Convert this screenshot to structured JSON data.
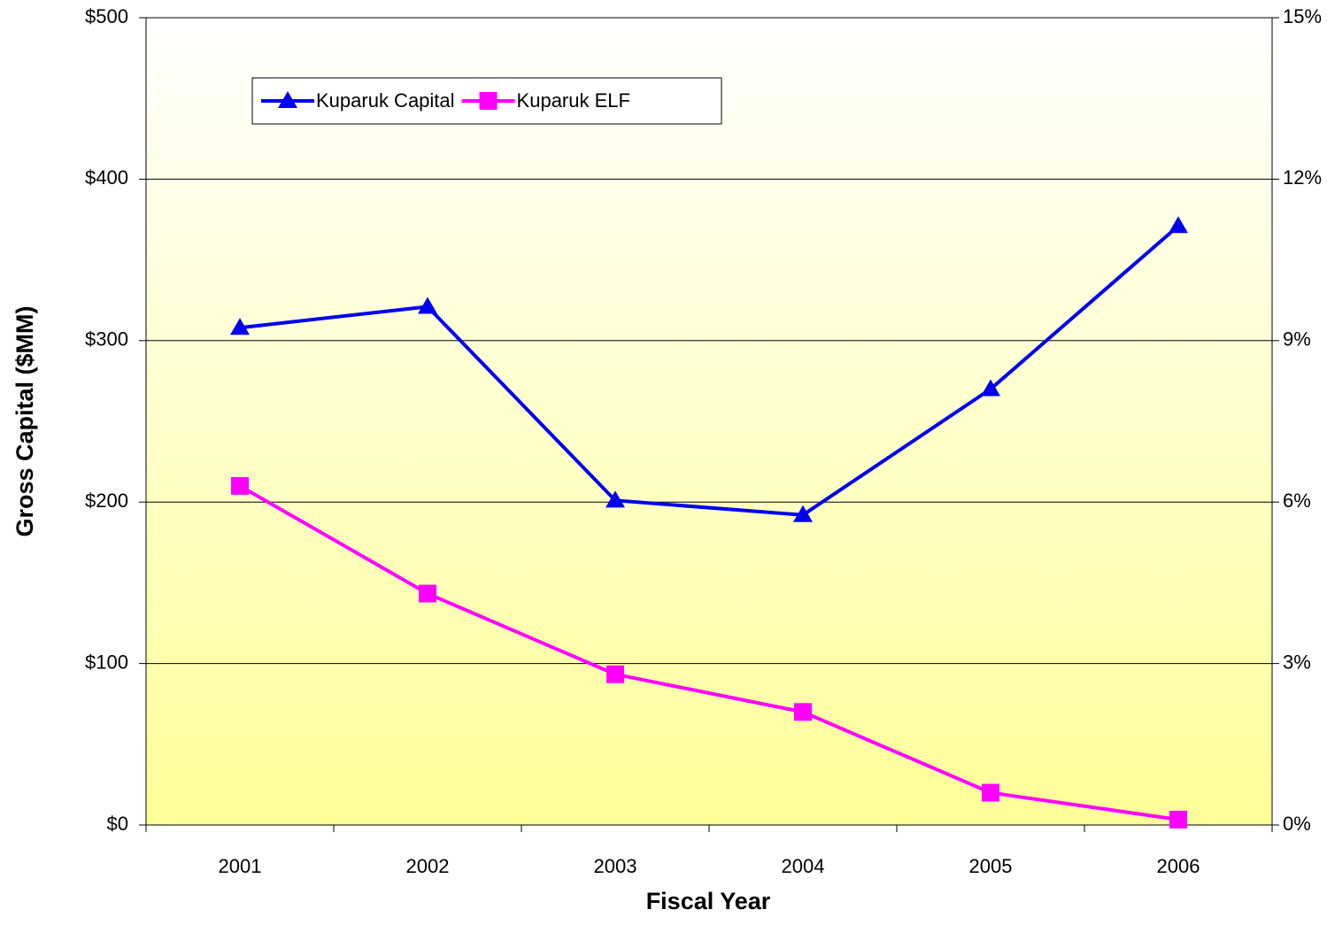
{
  "chart_data": {
    "type": "line",
    "x_label": "Fiscal Year",
    "y_label": "Gross Capital ($MM)",
    "categories": [
      "2001",
      "2002",
      "2003",
      "2004",
      "2005",
      "2006"
    ],
    "series": [
      {
        "name": "Kuparuk Capital",
        "color": "#0000ee",
        "marker": "triangle",
        "values": [
          308,
          321,
          201,
          192,
          270,
          371
        ]
      },
      {
        "name": "Kuparuk ELF",
        "color": "#ff00ff",
        "marker": "square",
        "axis": "y2",
        "values": [
          6.3,
          4.3,
          2.8,
          2.1,
          0.6,
          0.1
        ]
      }
    ],
    "ylim": [
      0,
      500
    ],
    "yticks": [
      {
        "value": 0,
        "label": "$0"
      },
      {
        "value": 100,
        "label": "$100"
      },
      {
        "value": 200,
        "label": "$200"
      },
      {
        "value": 300,
        "label": "$300"
      },
      {
        "value": 400,
        "label": "$400"
      },
      {
        "value": 500,
        "label": "$500"
      }
    ],
    "y2lim": [
      0,
      15
    ],
    "y2ticks": [
      {
        "value": 0,
        "label": "0%"
      },
      {
        "value": 3,
        "label": "3%"
      },
      {
        "value": 6,
        "label": "6%"
      },
      {
        "value": 9,
        "label": "9%"
      },
      {
        "value": 12,
        "label": "12%"
      },
      {
        "value": 15,
        "label": "15%"
      }
    ],
    "grid": true,
    "legend": "top-left"
  }
}
